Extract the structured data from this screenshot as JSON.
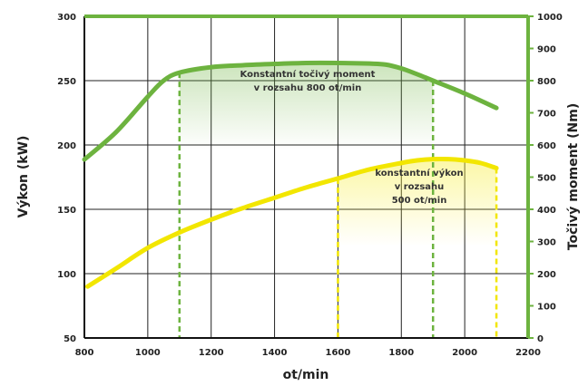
{
  "chart_data": {
    "type": "line",
    "xlabel": "ot/min",
    "ylabel_left": "Výkon (kW)",
    "ylabel_right": "Točivý moment (Nm)",
    "xlim": [
      800,
      2200
    ],
    "x_ticks": [
      800,
      1000,
      1200,
      1400,
      1600,
      1800,
      2000,
      2200
    ],
    "ylim_left": [
      50,
      300
    ],
    "y_ticks_left": [
      50,
      100,
      150,
      200,
      250,
      300
    ],
    "ylim_right": [
      0,
      1000
    ],
    "y_ticks_right": [
      0,
      100,
      200,
      300,
      400,
      500,
      600,
      700,
      800,
      900,
      1000
    ],
    "grid": true,
    "colors": {
      "torque": "#6db33f",
      "power": "#f2e600",
      "grid": "#222222"
    },
    "series": [
      {
        "axis": "right",
        "x": [
          800,
          900,
          1000,
          1050,
          1100,
          1200,
          1300,
          1400,
          1500,
          1600,
          1700,
          1750,
          1800,
          1850,
          1900,
          2000,
          2100
        ],
        "values": [
          555,
          640,
          750,
          800,
          825,
          842,
          848,
          852,
          855,
          855,
          853,
          850,
          838,
          820,
          800,
          760,
          715
        ]
      },
      {
        "axis": "left",
        "x": [
          810,
          900,
          1000,
          1100,
          1200,
          1300,
          1400,
          1500,
          1600,
          1700,
          1800,
          1850,
          1900,
          1950,
          2000,
          2050,
          2100
        ],
        "values": [
          90,
          104,
          120,
          132,
          142,
          151,
          159,
          167,
          174,
          181,
          186,
          188,
          189,
          189,
          188,
          186,
          182
        ]
      }
    ],
    "annotations": [
      {
        "lines": [
          "Konstantní točivý moment",
          "v rozsahu 800 ot/min"
        ],
        "range": [
          1100,
          1900
        ]
      },
      {
        "lines": [
          "konstantní výkon",
          "v rozsahu",
          "500 ot/min"
        ],
        "range": [
          1600,
          2100
        ]
      }
    ]
  }
}
